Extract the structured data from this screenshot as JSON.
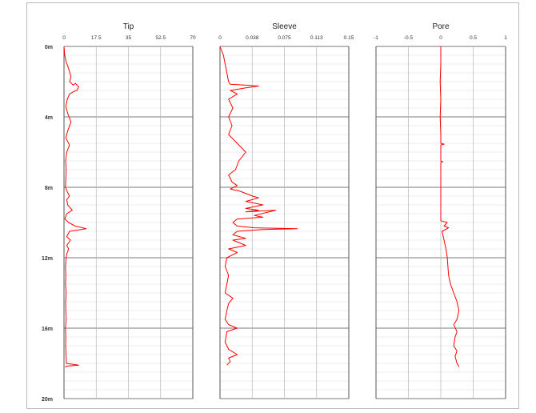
{
  "chart_data": {
    "type": "line",
    "depth_axis": {
      "range": [
        0,
        20
      ],
      "ticks": [
        0,
        4,
        8,
        12,
        16,
        20
      ],
      "tick_labels": [
        "0m",
        "4m",
        "8m",
        "12m",
        "16m",
        "20m"
      ],
      "direction": "downward"
    },
    "grid": true,
    "line_color": "#ff0000",
    "panels": [
      {
        "title": "Tip",
        "xlim": [
          0,
          70
        ],
        "tick_labels": [
          "0",
          "17.5",
          "35",
          "52.5",
          "70"
        ],
        "series": [
          {
            "points": [
              [
                0,
                0.0
              ],
              [
                0.4,
                0.5
              ],
              [
                1.2,
                0.9
              ],
              [
                2.0,
                1.1
              ],
              [
                3.8,
                1.7
              ],
              [
                3.1,
                2.0
              ],
              [
                5.0,
                2.2
              ],
              [
                6.2,
                2.1
              ],
              [
                8.0,
                2.3
              ],
              [
                7.0,
                2.5
              ],
              [
                5.5,
                2.55
              ],
              [
                3.0,
                2.7
              ],
              [
                1.8,
                3.0
              ],
              [
                1.0,
                3.4
              ],
              [
                2.0,
                3.8
              ],
              [
                3.8,
                4.3
              ],
              [
                2.0,
                4.8
              ],
              [
                1.0,
                5.2
              ],
              [
                3.0,
                5.6
              ],
              [
                1.5,
                6.0
              ],
              [
                0.9,
                6.5
              ],
              [
                1.2,
                7.0
              ],
              [
                1.0,
                7.5
              ],
              [
                0.8,
                8.0
              ],
              [
                1.5,
                8.2
              ],
              [
                3.0,
                8.5
              ],
              [
                1.5,
                8.7
              ],
              [
                2.0,
                9.0
              ],
              [
                4.5,
                9.3
              ],
              [
                1.5,
                9.5
              ],
              [
                0.5,
                9.8
              ],
              [
                2.5,
                10.0
              ],
              [
                6.0,
                10.2
              ],
              [
                12.0,
                10.35
              ],
              [
                3.0,
                10.5
              ],
              [
                1.5,
                10.8
              ],
              [
                3.5,
                11.0
              ],
              [
                1.5,
                11.3
              ],
              [
                2.5,
                11.5
              ],
              [
                1.5,
                11.8
              ],
              [
                1.2,
                12.0
              ],
              [
                0.8,
                12.5
              ],
              [
                1.0,
                13.0
              ],
              [
                0.8,
                13.5
              ],
              [
                1.2,
                14.0
              ],
              [
                0.9,
                14.5
              ],
              [
                1.0,
                15.0
              ],
              [
                1.2,
                15.5
              ],
              [
                0.8,
                16.0
              ],
              [
                1.0,
                16.5
              ],
              [
                0.9,
                17.0
              ],
              [
                1.1,
                17.5
              ],
              [
                1.3,
                18.0
              ],
              [
                8.0,
                18.1
              ],
              [
                2.0,
                18.15
              ],
              [
                0.5,
                18.2
              ]
            ]
          }
        ]
      },
      {
        "title": "Sleeve",
        "xlim": [
          0,
          0.15
        ],
        "tick_labels": [
          "0",
          "0.038",
          "0.075",
          "0.113",
          "0.15"
        ],
        "series": [
          {
            "points": [
              [
                0,
                0.0
              ],
              [
                0.004,
                0.5
              ],
              [
                0.006,
                1.0
              ],
              [
                0.008,
                1.5
              ],
              [
                0.01,
                2.0
              ],
              [
                0.012,
                2.15
              ],
              [
                0.03,
                2.2
              ],
              [
                0.045,
                2.25
              ],
              [
                0.03,
                2.35
              ],
              [
                0.012,
                2.5
              ],
              [
                0.02,
                2.7
              ],
              [
                0.01,
                3.0
              ],
              [
                0.015,
                3.5
              ],
              [
                0.01,
                4.0
              ],
              [
                0.014,
                4.5
              ],
              [
                0.01,
                5.0
              ],
              [
                0.02,
                5.5
              ],
              [
                0.03,
                6.0
              ],
              [
                0.022,
                6.5
              ],
              [
                0.018,
                7.0
              ],
              [
                0.01,
                7.3
              ],
              [
                0.014,
                7.7
              ],
              [
                0.02,
                7.9
              ],
              [
                0.012,
                8.1
              ],
              [
                0.022,
                8.2
              ],
              [
                0.038,
                8.5
              ],
              [
                0.045,
                8.6
              ],
              [
                0.03,
                8.8
              ],
              [
                0.05,
                9.0
              ],
              [
                0.03,
                9.2
              ],
              [
                0.045,
                9.3
              ],
              [
                0.03,
                9.4
              ],
              [
                0.065,
                9.3
              ],
              [
                0.04,
                9.6
              ],
              [
                0.05,
                9.7
              ],
              [
                0.02,
                9.8
              ],
              [
                0.015,
                10.0
              ],
              [
                0.02,
                10.2
              ],
              [
                0.04,
                10.3
              ],
              [
                0.09,
                10.35
              ],
              [
                0.05,
                10.4
              ],
              [
                0.02,
                10.5
              ],
              [
                0.015,
                10.7
              ],
              [
                0.03,
                10.9
              ],
              [
                0.015,
                11.0
              ],
              [
                0.03,
                11.3
              ],
              [
                0.01,
                11.5
              ],
              [
                0.02,
                11.7
              ],
              [
                0.008,
                12.0
              ],
              [
                0.006,
                12.5
              ],
              [
                0.01,
                13.0
              ],
              [
                0.008,
                13.5
              ],
              [
                0.006,
                14.0
              ],
              [
                0.015,
                14.3
              ],
              [
                0.01,
                14.6
              ],
              [
                0.008,
                15.0
              ],
              [
                0.006,
                15.5
              ],
              [
                0.01,
                15.8
              ],
              [
                0.02,
                16.0
              ],
              [
                0.008,
                16.2
              ],
              [
                0.006,
                16.8
              ],
              [
                0.01,
                17.2
              ],
              [
                0.02,
                17.5
              ],
              [
                0.01,
                17.7
              ],
              [
                0.012,
                17.9
              ],
              [
                0.008,
                18.1
              ]
            ]
          }
        ]
      },
      {
        "title": "Pore",
        "xlim": [
          -1,
          1
        ],
        "tick_labels": [
          "-1",
          "-0.5",
          "0",
          "0.5",
          "1"
        ],
        "series": [
          {
            "points": [
              [
                0,
                0.0
              ],
              [
                0.0,
                1.0
              ],
              [
                -0.01,
                2.0
              ],
              [
                0.0,
                3.0
              ],
              [
                -0.01,
                4.0
              ],
              [
                0.0,
                5.0
              ],
              [
                0.0,
                5.5
              ],
              [
                0.05,
                5.55
              ],
              [
                0.0,
                5.6
              ],
              [
                0.0,
                6.5
              ],
              [
                0.03,
                6.55
              ],
              [
                0.0,
                6.6
              ],
              [
                0.0,
                8.0
              ],
              [
                0.0,
                9.0
              ],
              [
                0.0,
                9.9
              ],
              [
                0.1,
                10.0
              ],
              [
                0.05,
                10.2
              ],
              [
                0.12,
                10.3
              ],
              [
                0.02,
                10.5
              ],
              [
                0.05,
                11.0
              ],
              [
                0.08,
                11.5
              ],
              [
                0.1,
                12.0
              ],
              [
                0.12,
                13.0
              ],
              [
                0.15,
                13.5
              ],
              [
                0.2,
                14.0
              ],
              [
                0.25,
                14.5
              ],
              [
                0.28,
                15.0
              ],
              [
                0.25,
                15.5
              ],
              [
                0.2,
                15.8
              ],
              [
                0.25,
                16.2
              ],
              [
                0.22,
                16.5
              ],
              [
                0.2,
                17.0
              ],
              [
                0.25,
                17.3
              ],
              [
                0.22,
                17.6
              ],
              [
                0.25,
                18.0
              ],
              [
                0.28,
                18.2
              ]
            ]
          }
        ]
      }
    ]
  }
}
